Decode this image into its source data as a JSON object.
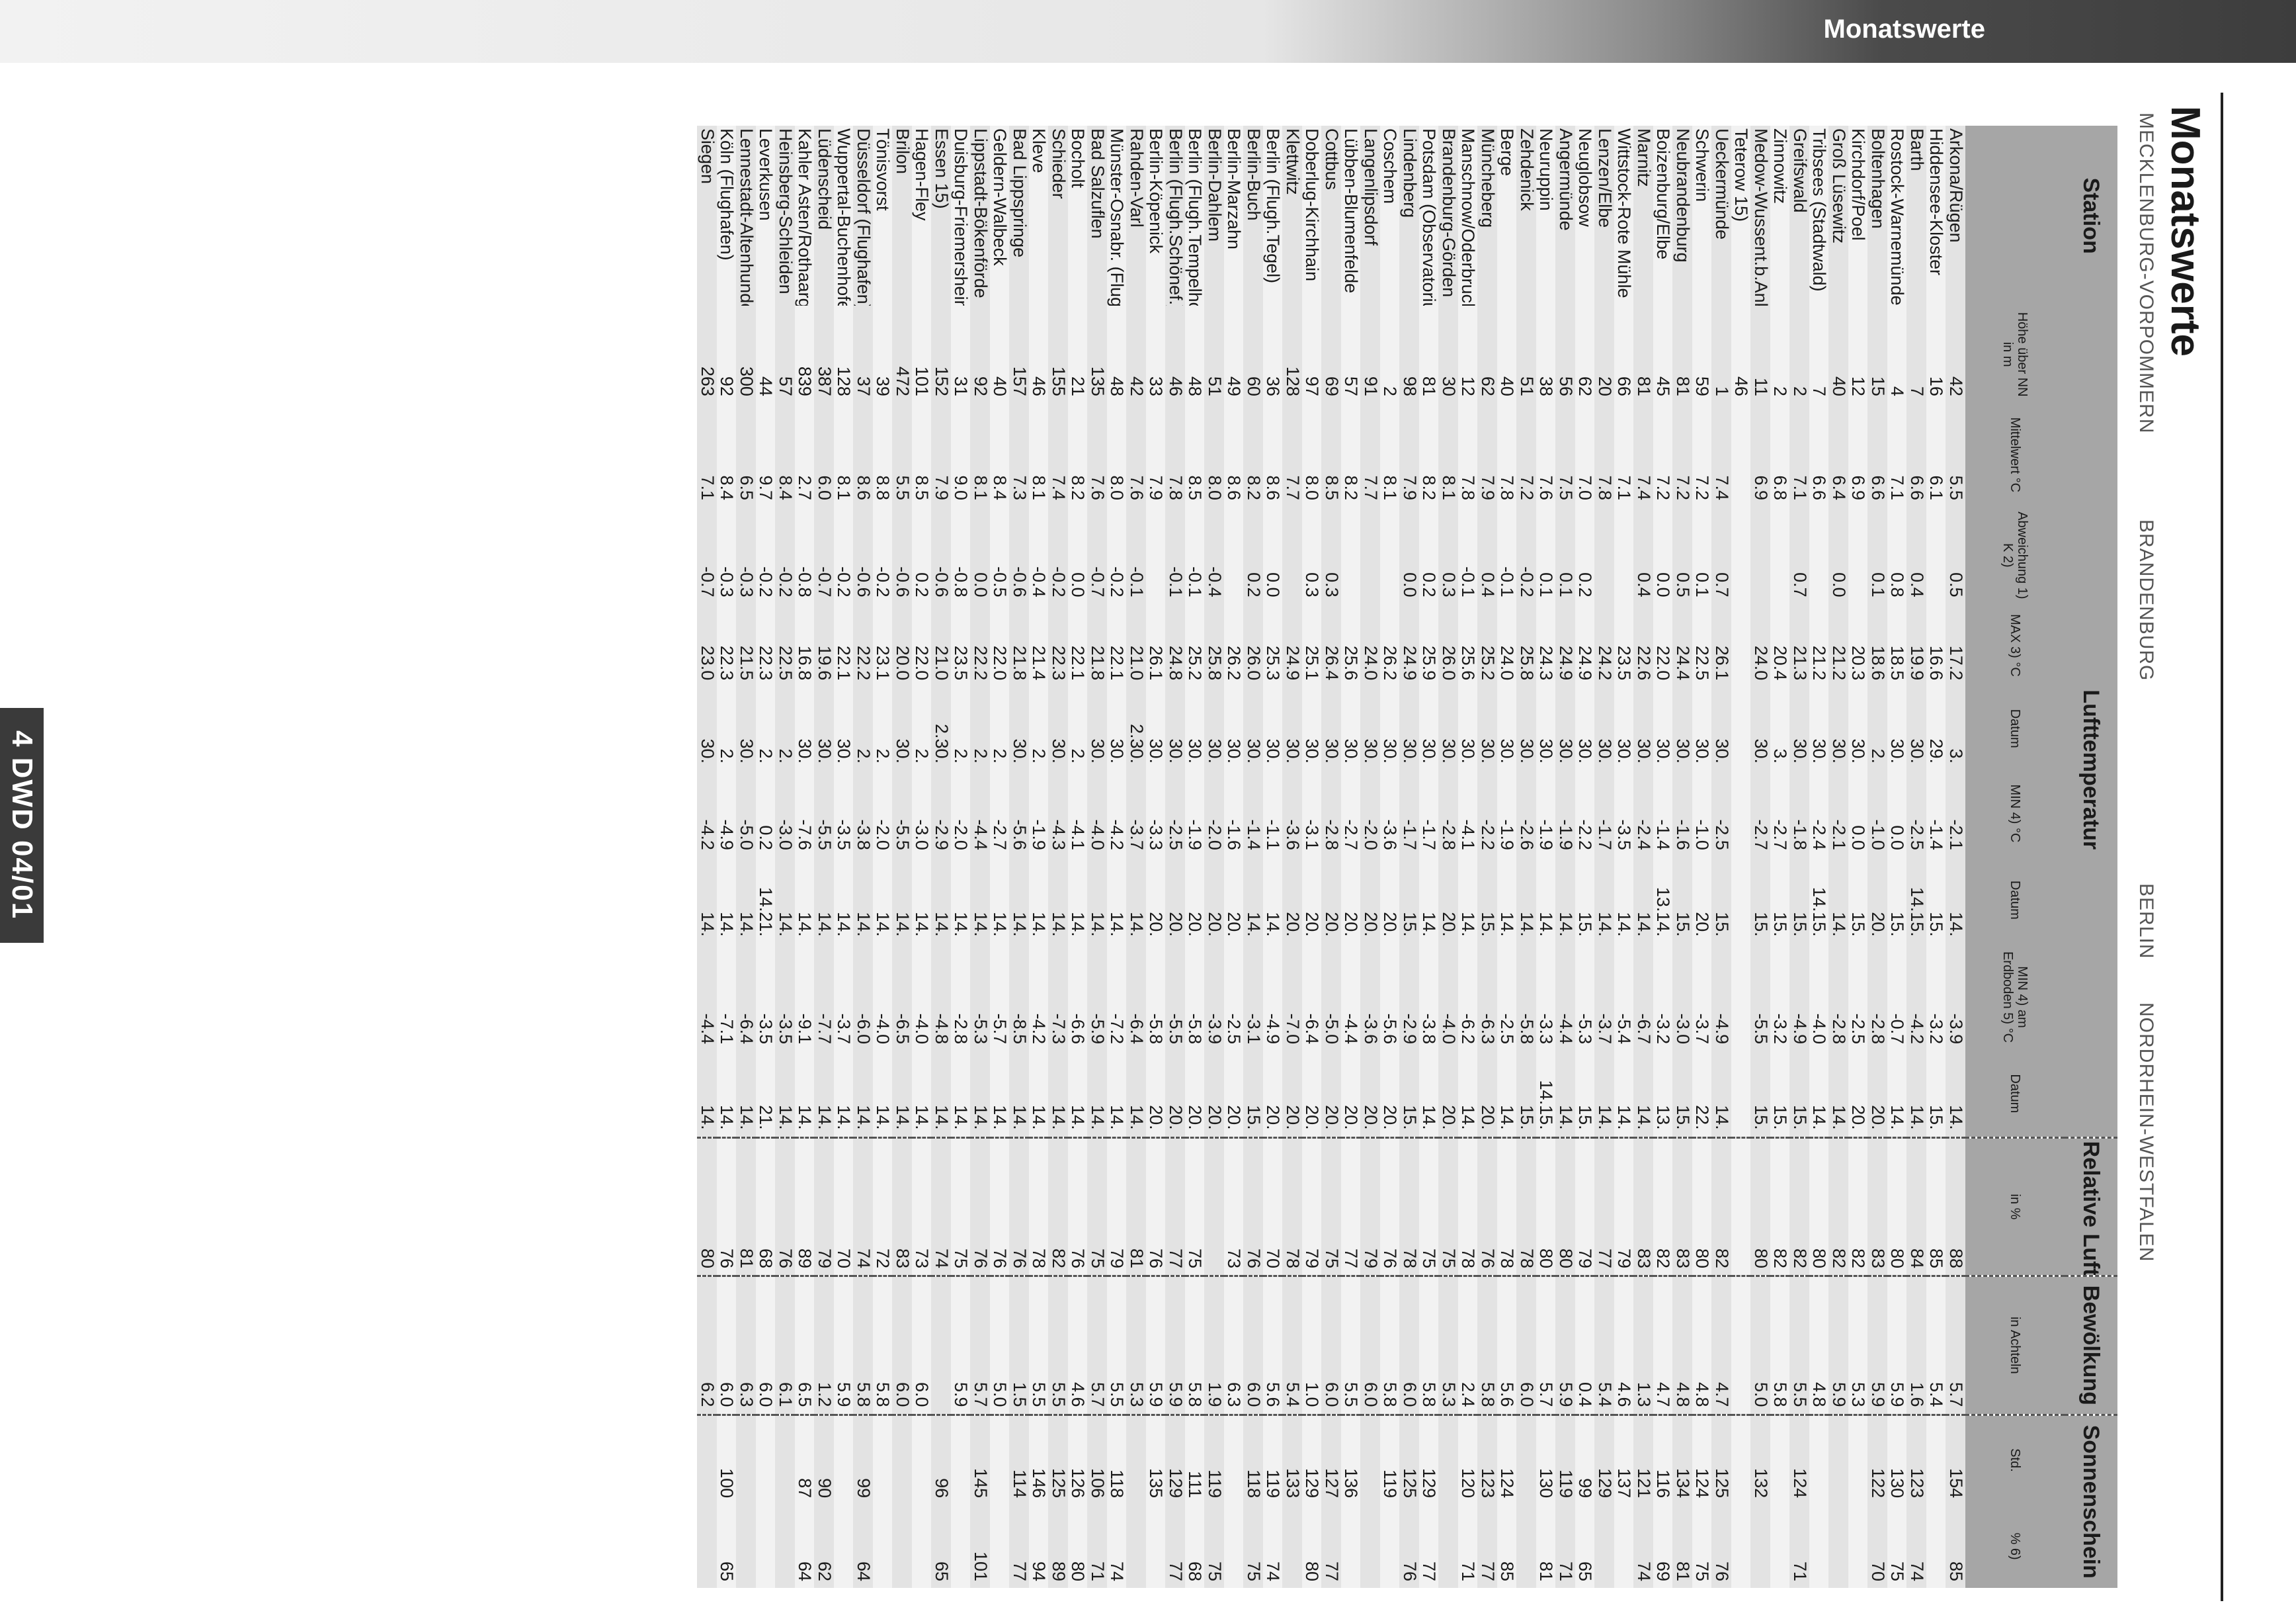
{
  "banner": {
    "title": "Monatswerte"
  },
  "side_tab": {
    "text": "4  DWD  04/01"
  },
  "page_title": "Monatswerte",
  "columns": {
    "station": "Station",
    "hoehe": "Höhe über NN in m",
    "lufttemperatur": "Lufttemperatur",
    "mittel": "Mittelwert °C",
    "abw": "Abweichung 1) K 2)",
    "max": "MAX 3) °C",
    "datum": "Datum",
    "min": "MIN 4) °C",
    "min_erd": "MIN 4) am Erdboden 5) °C",
    "feuchte": "Relative Luftfeuchte",
    "feuchte_unit": "in %",
    "bewoelkung": "Bewölkung",
    "bew_unit": "in Achteln",
    "sonne": "Sonnenschein",
    "std": "Std.",
    "pct": "% 6)"
  },
  "regions": [
    "MECKLENBURG-VORPOMMERN",
    "BRANDENBURG",
    "BERLIN",
    "NORDRHEIN-WESTFALEN"
  ],
  "rows": [
    [
      "Arkona/Rügen",
      "42",
      "5.5",
      "0.5",
      "17.2",
      "3.",
      "-2.1",
      "14.",
      "-3.9",
      "14.",
      "88",
      "5.7",
      "154",
      "85"
    ],
    [
      "Hiddensee-Kloster",
      "16",
      "6.1",
      "",
      "16.6",
      "29.",
      "-1.4",
      "15.",
      "-3.2",
      "15.",
      "85",
      "5.4",
      "",
      ""
    ],
    [
      "Barth",
      "7",
      "6.6",
      "0.4",
      "19.9",
      "30.",
      "-2.5",
      "14.15.",
      "-4.2",
      "14.",
      "84",
      "1.6",
      "123",
      "74"
    ],
    [
      "Rostock-Warnemünde",
      "4",
      "7.1",
      "0.8",
      "18.5",
      "30.",
      "0.0",
      "15.",
      "-0.7",
      "14.",
      "80",
      "5.9",
      "130",
      "75"
    ],
    [
      "Boltenhagen",
      "15",
      "6.6",
      "0.1",
      "18.6",
      "2.",
      "-1.0",
      "20.",
      "-2.8",
      "20.",
      "83",
      "5.9",
      "122",
      "70"
    ],
    [
      "Kirchdorf/Poel",
      "12",
      "6.9",
      "",
      "20.3",
      "30.",
      "0.0",
      "15.",
      "-2.5",
      "20.",
      "82",
      "5.3",
      "",
      ""
    ],
    [
      "Groß Lüsewitz",
      "40",
      "6.4",
      "0.0",
      "21.2",
      "30.",
      "-2.1",
      "14.",
      "-2.8",
      "14.",
      "82",
      "5.9",
      "",
      ""
    ],
    [
      "Tribsees (Stadtwald)",
      "7",
      "6.6",
      "",
      "21.2",
      "30.",
      "-2.4",
      "14.15.",
      "-4.0",
      "14.",
      "80",
      "4.8",
      "",
      ""
    ],
    [
      "Greifswald",
      "2",
      "7.1",
      "0.7",
      "21.3",
      "30.",
      "-1.8",
      "15.",
      "-4.9",
      "15.",
      "82",
      "5.5",
      "124",
      "71"
    ],
    [
      "Zinnowitz",
      "2",
      "6.8",
      "",
      "20.4",
      "3.",
      "-2.7",
      "15.",
      "-3.2",
      "15.",
      "82",
      "5.8",
      "",
      ""
    ],
    [
      "Medow-Wussent.b.Anklam",
      "11",
      "6.9",
      "",
      "24.0",
      "30.",
      "-2.7",
      "15.",
      "-5.5",
      "15.",
      "80",
      "5.0",
      "132",
      ""
    ],
    [
      "Teterow 15)",
      "46",
      "",
      "",
      "",
      "",
      "",
      "",
      "",
      "",
      "",
      "",
      "",
      ""
    ],
    [
      "Ueckermünde",
      "1",
      "7.4",
      "0.7",
      "26.1",
      "30.",
      "-2.5",
      "15.",
      "-4.9",
      "14.",
      "82",
      "4.7",
      "125",
      "76"
    ],
    [
      "Schwerin",
      "59",
      "7.2",
      "0.1",
      "22.5",
      "30.",
      "-1.0",
      "20.",
      "-3.7",
      "22.",
      "80",
      "4.8",
      "124",
      "75"
    ],
    [
      "Neubrandenburg",
      "81",
      "7.2",
      "0.5",
      "24.4",
      "30.",
      "-1.6",
      "15.",
      "-3.0",
      "15.",
      "83",
      "4.8",
      "134",
      "81"
    ],
    [
      "Boizenburg/Elbe",
      "45",
      "7.2",
      "0.0",
      "22.0",
      "30.",
      "-1.4",
      "13.14.",
      "-3.2",
      "13.",
      "82",
      "4.7",
      "116",
      "69"
    ],
    [
      "Marnitz",
      "81",
      "7.4",
      "0.4",
      "22.6",
      "30.",
      "-2.4",
      "14.",
      "-6.7",
      "14.",
      "83",
      "1.3",
      "121",
      "74"
    ],
    [
      "Wittstock-Rote Mühle",
      "66",
      "7.1",
      "",
      "23.5",
      "30.",
      "-3.5",
      "14.",
      "-5.4",
      "14.",
      "79",
      "4.6",
      "137",
      ""
    ],
    [
      "Lenzen/Elbe",
      "20",
      "7.8",
      "",
      "24.2",
      "30.",
      "-1.7",
      "14.",
      "-3.7",
      "14.",
      "77",
      "5.4",
      "129",
      ""
    ],
    [
      "Neuglobsow",
      "62",
      "7.0",
      "0.2",
      "24.9",
      "30.",
      "-2.2",
      "15.",
      "-5.3",
      "15.",
      "79",
      "0.4",
      "99",
      "65"
    ],
    [
      "Angermünde",
      "56",
      "7.5",
      "0.1",
      "24.9",
      "30.",
      "-1.9",
      "14.",
      "-4.4",
      "14.",
      "80",
      "5.9",
      "119",
      "71"
    ],
    [
      "Neuruppin",
      "38",
      "7.6",
      "0.1",
      "24.3",
      "30.",
      "-1.9",
      "14.",
      "-3.3",
      "14.15.",
      "80",
      "5.7",
      "130",
      "81"
    ],
    [
      "Zehdenick",
      "51",
      "7.2",
      "-0.2",
      "25.8",
      "30.",
      "-2.6",
      "14.",
      "-5.8",
      "15.",
      "78",
      "6.0",
      "",
      ""
    ],
    [
      "Berge",
      "40",
      "7.8",
      "-0.1",
      "24.0",
      "30.",
      "-1.9",
      "14.",
      "-2.5",
      "14.",
      "78",
      "5.6",
      "124",
      "85"
    ],
    [
      "Müncheberg",
      "62",
      "7.9",
      "0.4",
      "25.2",
      "30.",
      "-2.2",
      "15.",
      "-6.3",
      "20.",
      "76",
      "5.8",
      "123",
      "77"
    ],
    [
      "Manschnow/Oderbruch",
      "12",
      "7.8",
      "-0.1",
      "25.6",
      "30.",
      "-4.1",
      "14.",
      "-6.2",
      "14.",
      "78",
      "2.4",
      "120",
      "71"
    ],
    [
      "Brandenburg-Görden",
      "30",
      "8.1",
      "0.3",
      "26.0",
      "30.",
      "-2.8",
      "20.",
      "-4.0",
      "20.",
      "75",
      "5.3",
      "",
      ""
    ],
    [
      "Potsdam (Observatorium)",
      "81",
      "8.2",
      "0.2",
      "25.9",
      "30.",
      "-1.7",
      "14.",
      "-3.8",
      "14.",
      "75",
      "5.8",
      "129",
      "77"
    ],
    [
      "Lindenberg",
      "98",
      "7.9",
      "0.0",
      "24.9",
      "30.",
      "-1.7",
      "15.",
      "-2.9",
      "15.",
      "78",
      "6.0",
      "125",
      "76"
    ],
    [
      "Coschem",
      "2",
      "8.1",
      "",
      "26.2",
      "30.",
      "-3.6",
      "20.",
      "-5.6",
      "20.",
      "76",
      "5.8",
      "119",
      ""
    ],
    [
      "Langenlipsdorf",
      "91",
      "7.7",
      "",
      "24.0",
      "30.",
      "-2.0",
      "20.",
      "-3.6",
      "20.",
      "79",
      "6.0",
      "",
      ""
    ],
    [
      "Lübben-Blumenfelde",
      "57",
      "8.2",
      "",
      "25.6",
      "30.",
      "-2.7",
      "20.",
      "-4.4",
      "20.",
      "77",
      "5.5",
      "136",
      ""
    ],
    [
      "Cottbus",
      "69",
      "8.5",
      "0.3",
      "26.4",
      "30.",
      "-2.8",
      "20.",
      "-5.0",
      "20.",
      "75",
      "6.0",
      "127",
      "77"
    ],
    [
      "Doberlug-Kirchhain",
      "97",
      "8.0",
      "0.3",
      "25.1",
      "30.",
      "-3.1",
      "20.",
      "-6.4",
      "20.",
      "79",
      "1.0",
      "129",
      "80"
    ],
    [
      "Klettwitz",
      "128",
      "7.7",
      "",
      "24.9",
      "30.",
      "-3.6",
      "20.",
      "-7.0",
      "20.",
      "78",
      "5.4",
      "133",
      ""
    ],
    [
      "Berlin (Flugh.Tegel)",
      "36",
      "8.6",
      "0.0",
      "25.3",
      "30.",
      "-1.1",
      "14.",
      "-4.9",
      "20.",
      "70",
      "5.6",
      "119",
      "74"
    ],
    [
      "Berlin-Buch",
      "60",
      "8.2",
      "0.2",
      "26.0",
      "30.",
      "-1.4",
      "14.",
      "-3.1",
      "15.",
      "76",
      "6.0",
      "118",
      "75"
    ],
    [
      "Berlin-Marzahn",
      "49",
      "8.6",
      "",
      "26.2",
      "30.",
      "-1.6",
      "20.",
      "-2.5",
      "20.",
      "73",
      "6.3",
      "",
      ""
    ],
    [
      "Berlin-Dahlem",
      "51",
      "8.0",
      "-0.4",
      "25.8",
      "30.",
      "-2.0",
      "20.",
      "-3.9",
      "20.",
      "",
      "1.9",
      "119",
      "75"
    ],
    [
      "Berlin (Flugh.Tempelhof)",
      "48",
      "8.5",
      "-0.1",
      "25.2",
      "30.",
      "-1.9",
      "20.",
      "-5.8",
      "20.",
      "75",
      "5.8",
      "111",
      "68"
    ],
    [
      "Berlin (Flugh.Schönef.)",
      "46",
      "7.8",
      "-0.1",
      "24.8",
      "30.",
      "-2.5",
      "20.",
      "-5.5",
      "20.",
      "77",
      "5.9",
      "129",
      "77"
    ],
    [
      "Berlin-Köpenick",
      "33",
      "7.9",
      "",
      "26.1",
      "30.",
      "-3.3",
      "20.",
      "-5.8",
      "20.",
      "76",
      "5.9",
      "135",
      ""
    ],
    [
      "Rahden-Varl",
      "42",
      "7.6",
      "-0.1",
      "21.0",
      "2.30.",
      "-3.7",
      "14.",
      "-6.4",
      "14.",
      "81",
      "5.3",
      "",
      ""
    ],
    [
      "Münster-Osnabr. (Flugh.)",
      "48",
      "8.0",
      "-0.2",
      "22.1",
      "30.",
      "-4.2",
      "14.",
      "-7.2",
      "14.",
      "79",
      "5.5",
      "118",
      "74"
    ],
    [
      "Bad Salzuflen",
      "135",
      "7.6",
      "-0.7",
      "21.8",
      "30.",
      "-4.0",
      "14.",
      "-5.9",
      "14.",
      "75",
      "5.7",
      "106",
      "71"
    ],
    [
      "Bocholt",
      "21",
      "8.2",
      "0.0",
      "22.1",
      "2.",
      "-4.1",
      "14.",
      "-6.6",
      "14.",
      "76",
      "4.6",
      "126",
      "80"
    ],
    [
      "Schieder",
      "155",
      "7.4",
      "-0.2",
      "22.3",
      "30.",
      "-4.3",
      "14.",
      "-7.3",
      "14.",
      "82",
      "5.5",
      "125",
      "89"
    ],
    [
      "Kleve",
      "46",
      "8.1",
      "-0.4",
      "21.4",
      "2.",
      "-1.9",
      "14.",
      "-4.2",
      "14.",
      "78",
      "5.5",
      "146",
      "94"
    ],
    [
      "Bad Lippspringe",
      "157",
      "7.3",
      "-0.6",
      "21.8",
      "30.",
      "-5.6",
      "14.",
      "-8.5",
      "14.",
      "76",
      "1.5",
      "114",
      "77"
    ],
    [
      "Geldern-Walbeck",
      "40",
      "8.4",
      "-0.5",
      "22.0",
      "2.",
      "-2.7",
      "14.",
      "-5.7",
      "14.",
      "76",
      "5.0",
      "",
      ""
    ],
    [
      "Lippstadt-Bökenförde",
      "92",
      "8.1",
      "0.0",
      "22.2",
      "2.",
      "-4.4",
      "14.",
      "-5.3",
      "14.",
      "76",
      "5.7",
      "145",
      "101"
    ],
    [
      "Duisburg-Friemersheim",
      "31",
      "9.0",
      "-0.8",
      "23.5",
      "2.",
      "-2.0",
      "14.",
      "-2.8",
      "14.",
      "75",
      "5.9",
      "",
      ""
    ],
    [
      "Essen 15)",
      "152",
      "7.9",
      "-0.6",
      "21.0",
      "2.30.",
      "-2.9",
      "14.",
      "-4.8",
      "14.",
      "74",
      "",
      "96",
      "65"
    ],
    [
      "Hagen-Fley",
      "101",
      "8.5",
      "0.2",
      "22.0",
      "2.",
      "-3.0",
      "14.",
      "-4.0",
      "14.",
      "73",
      "6.0",
      "",
      ""
    ],
    [
      "Brilon",
      "472",
      "5.5",
      "-0.6",
      "20.0",
      "30.",
      "-5.5",
      "14.",
      "-6.5",
      "14.",
      "83",
      "6.0",
      "",
      ""
    ],
    [
      "Tönisvorst",
      "39",
      "8.8",
      "-0.2",
      "23.1",
      "2.",
      "-2.0",
      "14.",
      "-4.0",
      "14.",
      "72",
      "5.8",
      "",
      ""
    ],
    [
      "Düsseldorf (Flughafen)",
      "37",
      "8.6",
      "-0.6",
      "22.2",
      "2.",
      "-3.8",
      "14.",
      "-6.0",
      "14.",
      "74",
      "5.8",
      "99",
      "64"
    ],
    [
      "Wuppertal-Buchenhofen",
      "128",
      "8.1",
      "-0.2",
      "22.1",
      "30.",
      "-3.5",
      "14.",
      "-3.7",
      "14.",
      "70",
      "5.9",
      "",
      ""
    ],
    [
      "Lüdenscheid",
      "387",
      "6.0",
      "-0.7",
      "19.6",
      "30.",
      "-5.5",
      "14.",
      "-7.7",
      "14.",
      "79",
      "1.2",
      "90",
      "62"
    ],
    [
      "Kahler Asten/Rothaargeb.",
      "839",
      "2.7",
      "-0.8",
      "16.8",
      "30.",
      "-7.6",
      "14.",
      "-9.1",
      "14.",
      "89",
      "6.5",
      "87",
      "64"
    ],
    [
      "Heinsberg-Schleiden",
      "57",
      "8.4",
      "-0.2",
      "22.5",
      "2.",
      "-3.0",
      "14.",
      "-3.5",
      "14.",
      "76",
      "6.1",
      "",
      ""
    ],
    [
      "Leverkusen",
      "44",
      "9.7",
      "-0.2",
      "22.3",
      "2.",
      "0.2",
      "14.21.",
      "-3.5",
      "21.",
      "68",
      "6.0",
      "",
      ""
    ],
    [
      "Lennestadt-Altenhundem",
      "300",
      "6.5",
      "-0.3",
      "21.5",
      "30.",
      "-5.0",
      "14.",
      "-6.4",
      "14.",
      "81",
      "6.3",
      "",
      ""
    ],
    [
      "Köln (Flughafen)",
      "92",
      "8.4",
      "-0.3",
      "22.3",
      "2.",
      "-4.9",
      "14.",
      "-7.1",
      "14.",
      "76",
      "6.0",
      "100",
      "65"
    ],
    [
      "Siegen",
      "263",
      "7.1",
      "-0.7",
      "23.0",
      "30.",
      "-4.2",
      "14.",
      "-4.4",
      "14.",
      "80",
      "6.2",
      "",
      ""
    ]
  ]
}
